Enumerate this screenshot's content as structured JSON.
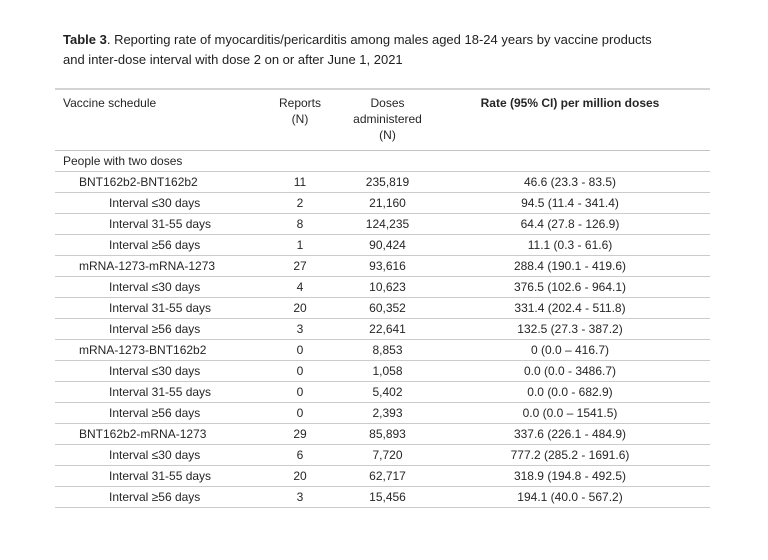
{
  "colors": {
    "background": "#ffffff",
    "text": "#262626",
    "rule_light": "#cbcbcb",
    "rule_top": "#d4d4d4"
  },
  "title": {
    "prefix": "Table 3",
    "line1_rest": ". Reporting rate of myocarditis/pericarditis among males aged 18-24 years by vaccine products",
    "line2": "and inter-dose interval with dose 2 on or after June 1, 2021"
  },
  "table": {
    "columns": {
      "schedule": "Vaccine schedule",
      "reports": "Reports\n(N)",
      "doses": "Doses\nadministered\n(N)",
      "rate": "Rate (95% CI) per million doses"
    },
    "rows": [
      {
        "section": true,
        "label": "People with two doses",
        "reports": "",
        "doses": "",
        "rate": ""
      },
      {
        "indent": 1,
        "label": "BNT162b2-BNT162b2",
        "reports": "11",
        "doses": "235,819",
        "rate": "46.6 (23.3 - 83.5)"
      },
      {
        "indent": 2,
        "label": "Interval ≤30 days",
        "reports": "2",
        "doses": "21,160",
        "rate": "94.5 (11.4 - 341.4)"
      },
      {
        "indent": 2,
        "label": "Interval 31-55 days",
        "reports": "8",
        "doses": "124,235",
        "rate": "64.4 (27.8 - 126.9)"
      },
      {
        "indent": 2,
        "label": "Interval ≥56 days",
        "reports": "1",
        "doses": "90,424",
        "rate": "11.1 (0.3 - 61.6)"
      },
      {
        "indent": 1,
        "label": "mRNA-1273-mRNA-1273",
        "reports": "27",
        "doses": "93,616",
        "rate": "288.4 (190.1 - 419.6)"
      },
      {
        "indent": 2,
        "label": "Interval ≤30 days",
        "reports": "4",
        "doses": "10,623",
        "rate": "376.5 (102.6 - 964.1)"
      },
      {
        "indent": 2,
        "label": "Interval 31-55 days",
        "reports": "20",
        "doses": "60,352",
        "rate": "331.4 (202.4 - 511.8)"
      },
      {
        "indent": 2,
        "label": "Interval ≥56 days",
        "reports": "3",
        "doses": "22,641",
        "rate": "132.5 (27.3 - 387.2)"
      },
      {
        "indent": 1,
        "label": "mRNA-1273-BNT162b2",
        "reports": "0",
        "doses": "8,853",
        "rate": "0 (0.0 – 416.7)"
      },
      {
        "indent": 2,
        "label": "Interval ≤30 days",
        "reports": "0",
        "doses": "1,058",
        "rate": "0.0 (0.0 - 3486.7)"
      },
      {
        "indent": 2,
        "label": "Interval 31-55 days",
        "reports": "0",
        "doses": "5,402",
        "rate": "0.0 (0.0 - 682.9)"
      },
      {
        "indent": 2,
        "label": "Interval ≥56 days",
        "reports": "0",
        "doses": "2,393",
        "rate": "0.0 (0.0 – 1541.5)"
      },
      {
        "indent": 1,
        "label": "BNT162b2-mRNA-1273",
        "reports": "29",
        "doses": "85,893",
        "rate": "337.6 (226.1 - 484.9)"
      },
      {
        "indent": 2,
        "label": "Interval ≤30 days",
        "reports": "6",
        "doses": "7,720",
        "rate": "777.2 (285.2 - 1691.6)"
      },
      {
        "indent": 2,
        "label": "Interval 31-55 days",
        "reports": "20",
        "doses": "62,717",
        "rate": "318.9 (194.8 - 492.5)"
      },
      {
        "indent": 2,
        "label": "Interval ≥56 days",
        "reports": "3",
        "doses": "15,456",
        "rate": "194.1 (40.0 - 567.2)"
      }
    ]
  }
}
